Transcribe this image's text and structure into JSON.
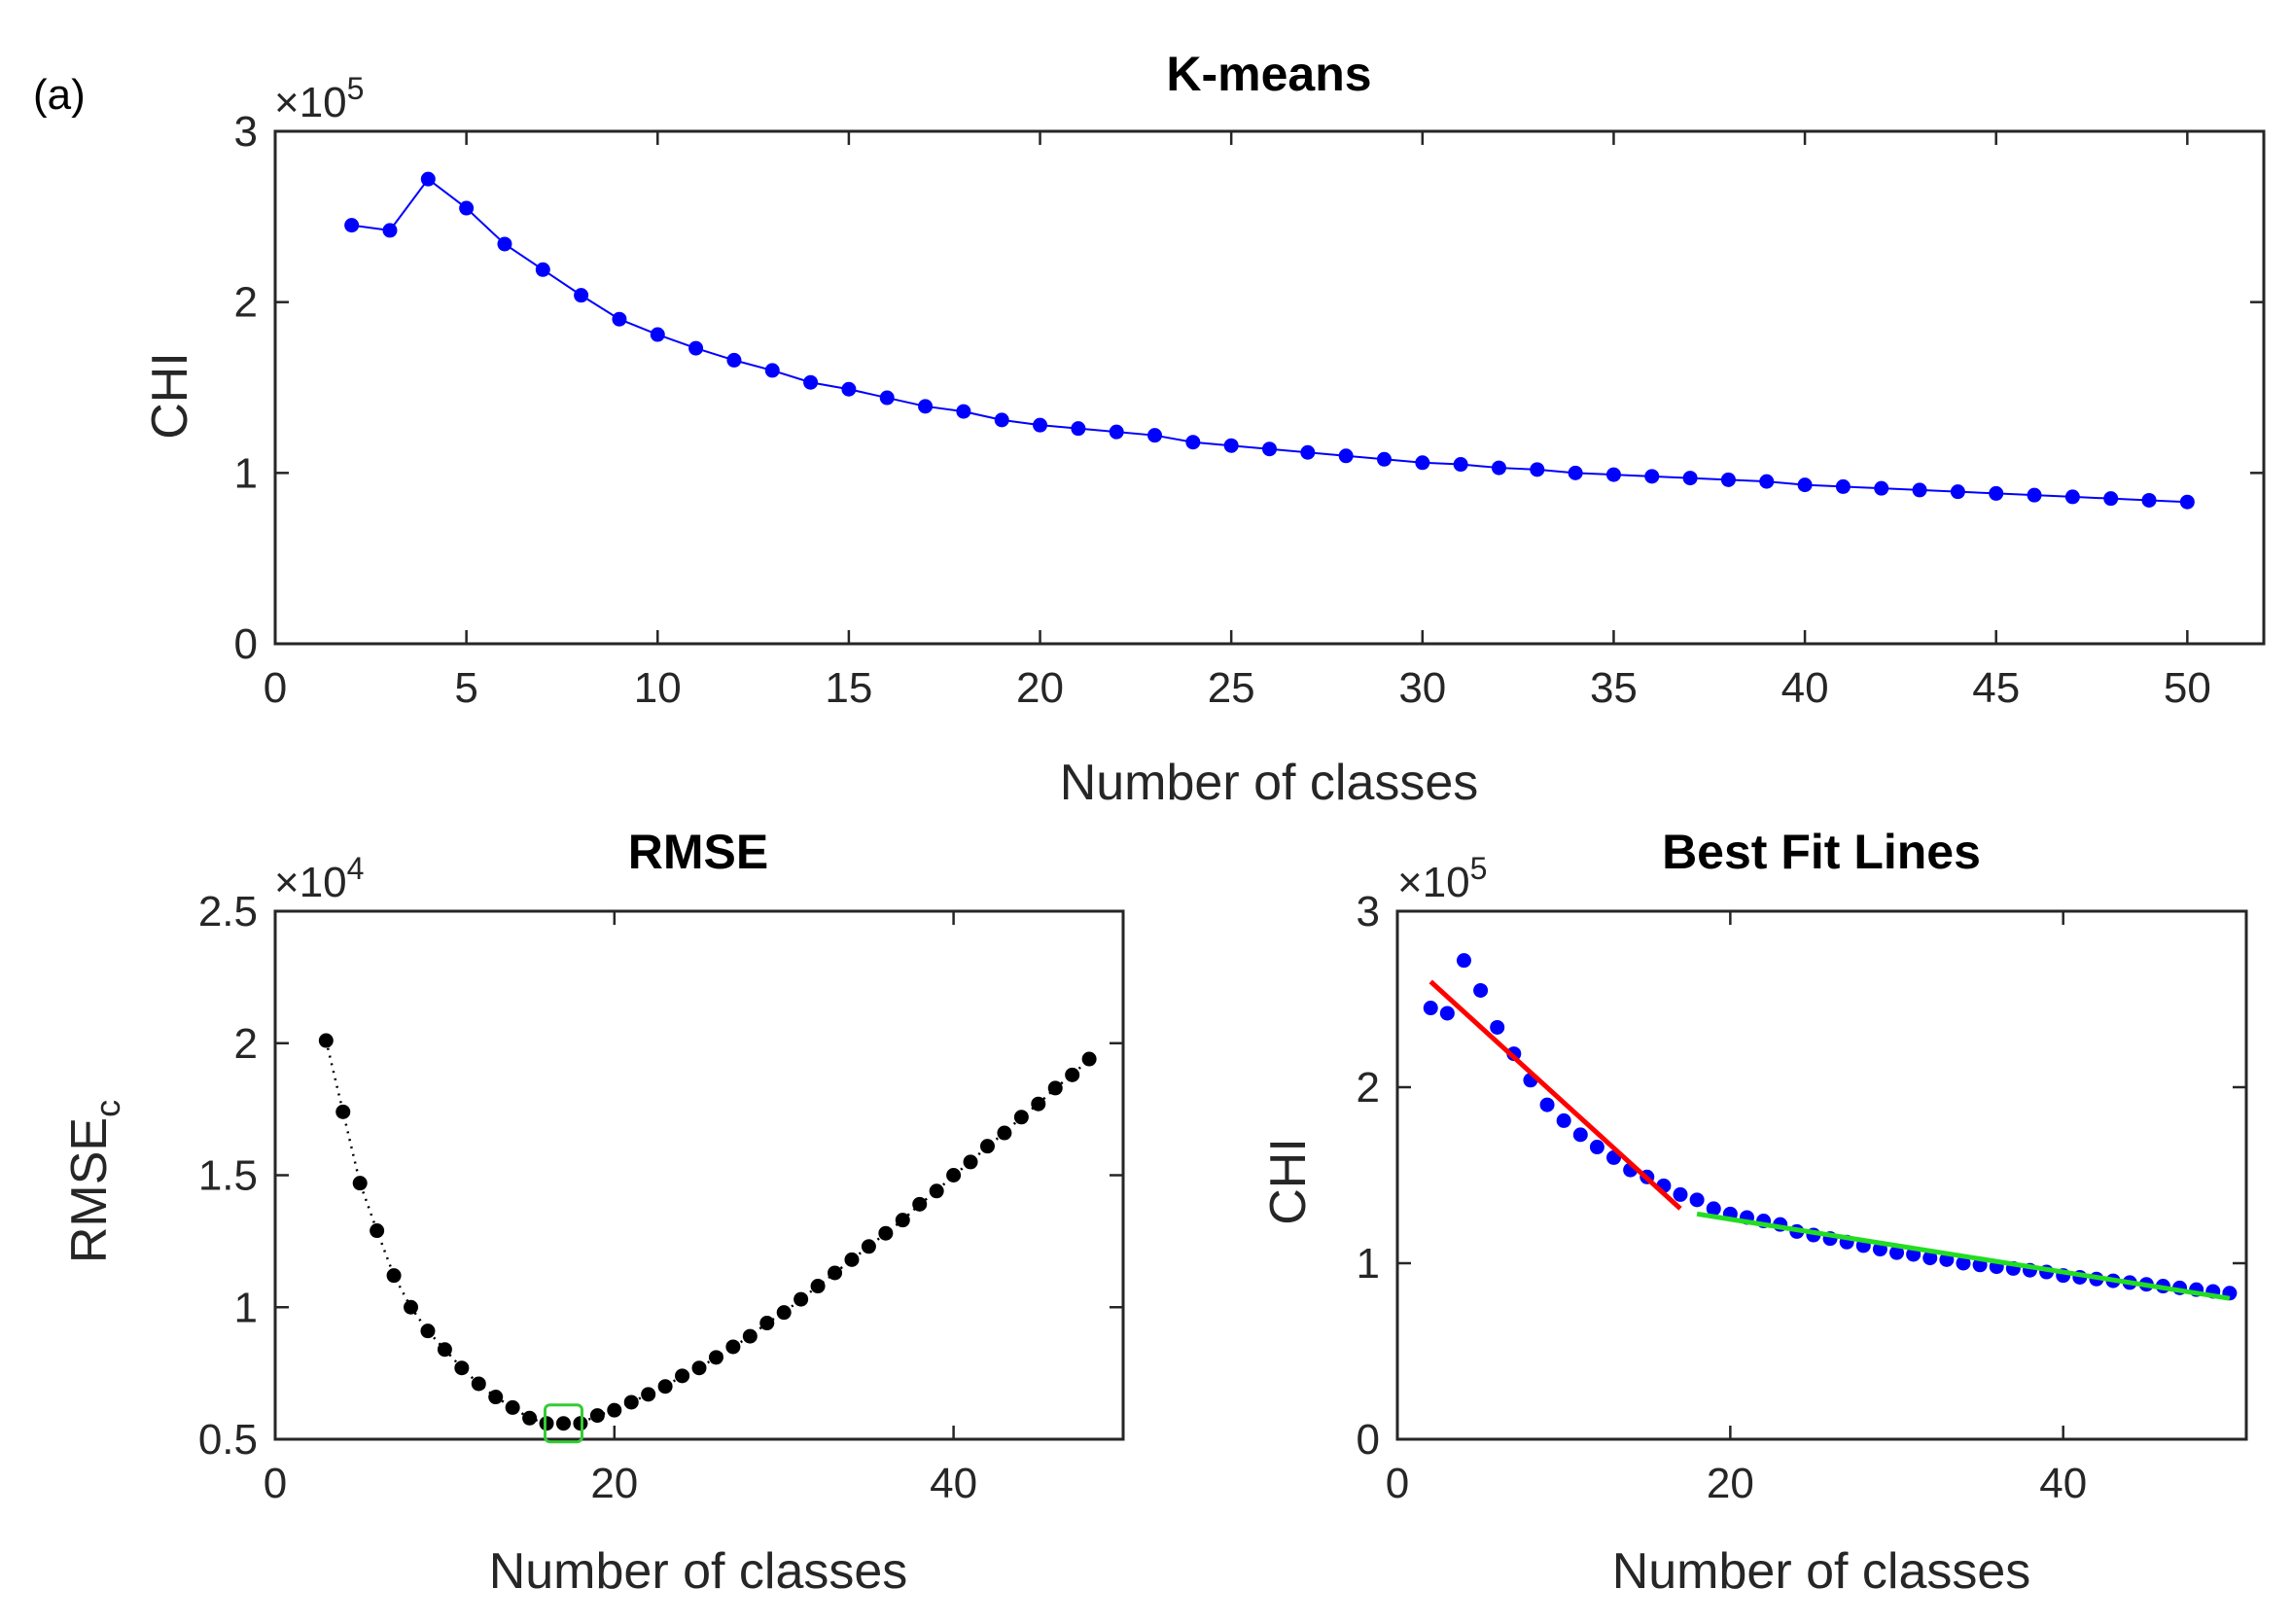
{
  "figure": {
    "panel_tag": "(a)"
  },
  "chart_data": [
    {
      "id": "kmeans",
      "type": "line",
      "title": "K-means",
      "xlabel": "Number of classes",
      "ylabel": "CHI",
      "exponent": "10",
      "exponent_power": "5",
      "exponent_prefix": "×",
      "xlim": [
        0,
        52
      ],
      "ylim": [
        0,
        3
      ],
      "xticks": [
        0,
        5,
        10,
        15,
        20,
        25,
        30,
        35,
        40,
        45,
        50
      ],
      "xtick_labels": [
        "0",
        "5",
        "10",
        "15",
        "20",
        "25",
        "30",
        "35",
        "40",
        "45",
        "50"
      ],
      "yticks": [
        0,
        1,
        2,
        3
      ],
      "ytick_labels": [
        "0",
        "1",
        "2",
        "3"
      ],
      "grid": false,
      "series": [
        {
          "name": "CHI",
          "color": "#0000ff",
          "marker": "dot",
          "line": "solid",
          "x": [
            2,
            3,
            4,
            5,
            6,
            7,
            8,
            9,
            10,
            11,
            12,
            13,
            14,
            15,
            16,
            17,
            18,
            19,
            20,
            21,
            22,
            23,
            24,
            25,
            26,
            27,
            28,
            29,
            30,
            31,
            32,
            33,
            34,
            35,
            36,
            37,
            38,
            39,
            40,
            41,
            42,
            43,
            44,
            45,
            46,
            47,
            48,
            49,
            50
          ],
          "y": [
            2.45,
            2.42,
            2.72,
            2.55,
            2.34,
            2.19,
            2.04,
            1.9,
            1.81,
            1.73,
            1.66,
            1.6,
            1.53,
            1.49,
            1.44,
            1.39,
            1.36,
            1.31,
            1.28,
            1.26,
            1.24,
            1.22,
            1.18,
            1.16,
            1.14,
            1.12,
            1.1,
            1.08,
            1.06,
            1.05,
            1.03,
            1.02,
            1.0,
            0.99,
            0.98,
            0.97,
            0.96,
            0.95,
            0.93,
            0.92,
            0.91,
            0.9,
            0.89,
            0.88,
            0.87,
            0.86,
            0.85,
            0.84,
            0.83
          ]
        }
      ]
    },
    {
      "id": "rmse",
      "type": "scatter",
      "title": "RMSE",
      "xlabel": "Number of classes",
      "ylabel": "RMSE",
      "ylabel_subscript": "c",
      "exponent": "10",
      "exponent_power": "4",
      "exponent_prefix": "×",
      "xlim": [
        0,
        50
      ],
      "ylim": [
        0.5,
        2.5
      ],
      "xticks": [
        0,
        20,
        40
      ],
      "xtick_labels": [
        "0",
        "20",
        "40"
      ],
      "yticks": [
        0.5,
        1,
        1.5,
        2,
        2.5
      ],
      "ytick_labels": [
        "0.5",
        "1",
        "1.5",
        "2",
        "2.5"
      ],
      "grid": false,
      "highlight_x": 17,
      "highlight_color": "#33cc33",
      "series": [
        {
          "name": "RMSE_c",
          "color": "#000000",
          "marker": "dot",
          "line": "dotted",
          "x": [
            3,
            4,
            5,
            6,
            7,
            8,
            9,
            10,
            11,
            12,
            13,
            14,
            15,
            16,
            17,
            18,
            19,
            20,
            21,
            22,
            23,
            24,
            25,
            26,
            27,
            28,
            29,
            30,
            31,
            32,
            33,
            34,
            35,
            36,
            37,
            38,
            39,
            40,
            41,
            42,
            43,
            44,
            45,
            46,
            47,
            48
          ],
          "y": [
            2.01,
            1.74,
            1.47,
            1.29,
            1.12,
            1.0,
            0.91,
            0.84,
            0.77,
            0.71,
            0.66,
            0.62,
            0.58,
            0.56,
            0.56,
            0.56,
            0.59,
            0.61,
            0.64,
            0.67,
            0.7,
            0.74,
            0.77,
            0.81,
            0.85,
            0.89,
            0.94,
            0.98,
            1.03,
            1.08,
            1.13,
            1.18,
            1.23,
            1.28,
            1.33,
            1.39,
            1.44,
            1.5,
            1.55,
            1.61,
            1.66,
            1.72,
            1.77,
            1.83,
            1.88,
            1.94
          ]
        }
      ]
    },
    {
      "id": "bestfit",
      "type": "scatter",
      "title": "Best Fit Lines",
      "xlabel": "Number of classes",
      "ylabel": "CHI",
      "exponent": "10",
      "exponent_power": "5",
      "exponent_prefix": "×",
      "xlim": [
        0,
        51
      ],
      "ylim": [
        0,
        3
      ],
      "xticks": [
        0,
        20,
        40
      ],
      "xtick_labels": [
        "0",
        "20",
        "40"
      ],
      "yticks": [
        0,
        1,
        2,
        3
      ],
      "ytick_labels": [
        "0",
        "1",
        "2",
        "3"
      ],
      "grid": false,
      "series": [
        {
          "name": "CHI",
          "color": "#0000ff",
          "marker": "dot",
          "line": "none",
          "x": [
            2,
            3,
            4,
            5,
            6,
            7,
            8,
            9,
            10,
            11,
            12,
            13,
            14,
            15,
            16,
            17,
            18,
            19,
            20,
            21,
            22,
            23,
            24,
            25,
            26,
            27,
            28,
            29,
            30,
            31,
            32,
            33,
            34,
            35,
            36,
            37,
            38,
            39,
            40,
            41,
            42,
            43,
            44,
            45,
            46,
            47,
            48,
            49,
            50
          ],
          "y": [
            2.45,
            2.42,
            2.72,
            2.55,
            2.34,
            2.19,
            2.04,
            1.9,
            1.81,
            1.73,
            1.66,
            1.6,
            1.53,
            1.49,
            1.44,
            1.39,
            1.36,
            1.31,
            1.28,
            1.26,
            1.24,
            1.22,
            1.18,
            1.16,
            1.14,
            1.12,
            1.1,
            1.08,
            1.06,
            1.05,
            1.03,
            1.02,
            1.0,
            0.99,
            0.98,
            0.97,
            0.96,
            0.95,
            0.93,
            0.92,
            0.91,
            0.9,
            0.89,
            0.88,
            0.87,
            0.86,
            0.85,
            0.84,
            0.83
          ]
        }
      ],
      "fit_lines": [
        {
          "name": "fit-left",
          "color": "#ff0000",
          "x": [
            2,
            17
          ],
          "y": [
            2.6,
            1.31
          ]
        },
        {
          "name": "fit-right",
          "color": "#22dd22",
          "x": [
            18,
            50
          ],
          "y": [
            1.28,
            0.8
          ]
        }
      ]
    }
  ]
}
